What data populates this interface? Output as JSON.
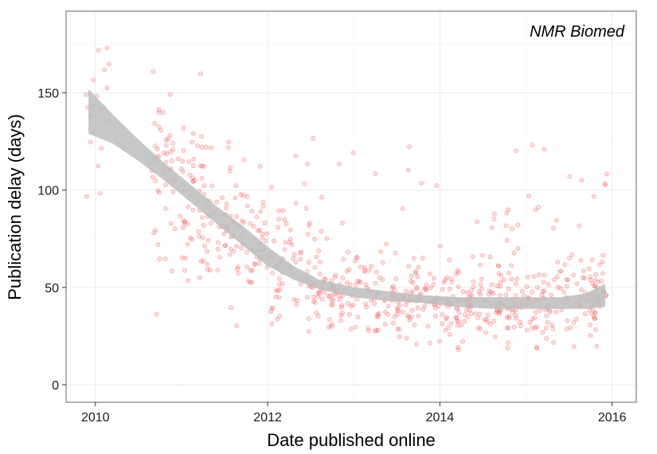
{
  "chart_data": {
    "type": "scatter",
    "title": "",
    "annotation": "NMR Biomed",
    "xlabel": "Date published online",
    "ylabel": "Publication delay (days)",
    "x_unit": "year",
    "xlim": [
      2009.66,
      2016.28
    ],
    "ylim": [
      -9,
      192
    ],
    "xticks": [
      2010,
      2012,
      2014,
      2016
    ],
    "yticks": [
      0,
      50,
      100,
      150
    ],
    "grid": true,
    "legend": "none",
    "point_color": "#f06060",
    "band_color": "#bdbdbd",
    "smooth": {
      "x": [
        2009.92,
        2010.2,
        2010.5,
        2010.8,
        2011.1,
        2011.4,
        2011.7,
        2012.0,
        2012.3,
        2012.6,
        2013.0,
        2013.4,
        2013.8,
        2014.2,
        2014.6,
        2015.0,
        2015.4,
        2015.7,
        2015.92
      ],
      "lower": [
        129,
        124,
        115,
        105,
        94,
        83,
        72,
        61,
        54,
        49,
        45,
        43,
        42,
        40,
        39,
        39,
        39,
        39,
        40
      ],
      "upper": [
        152,
        139,
        126,
        114,
        103,
        92,
        82,
        71,
        61,
        54,
        50,
        48,
        46,
        45,
        45,
        45,
        45,
        47,
        52
      ]
    },
    "points_summary": {
      "count": 800,
      "note": "approximate scatter of individual articles"
    }
  }
}
